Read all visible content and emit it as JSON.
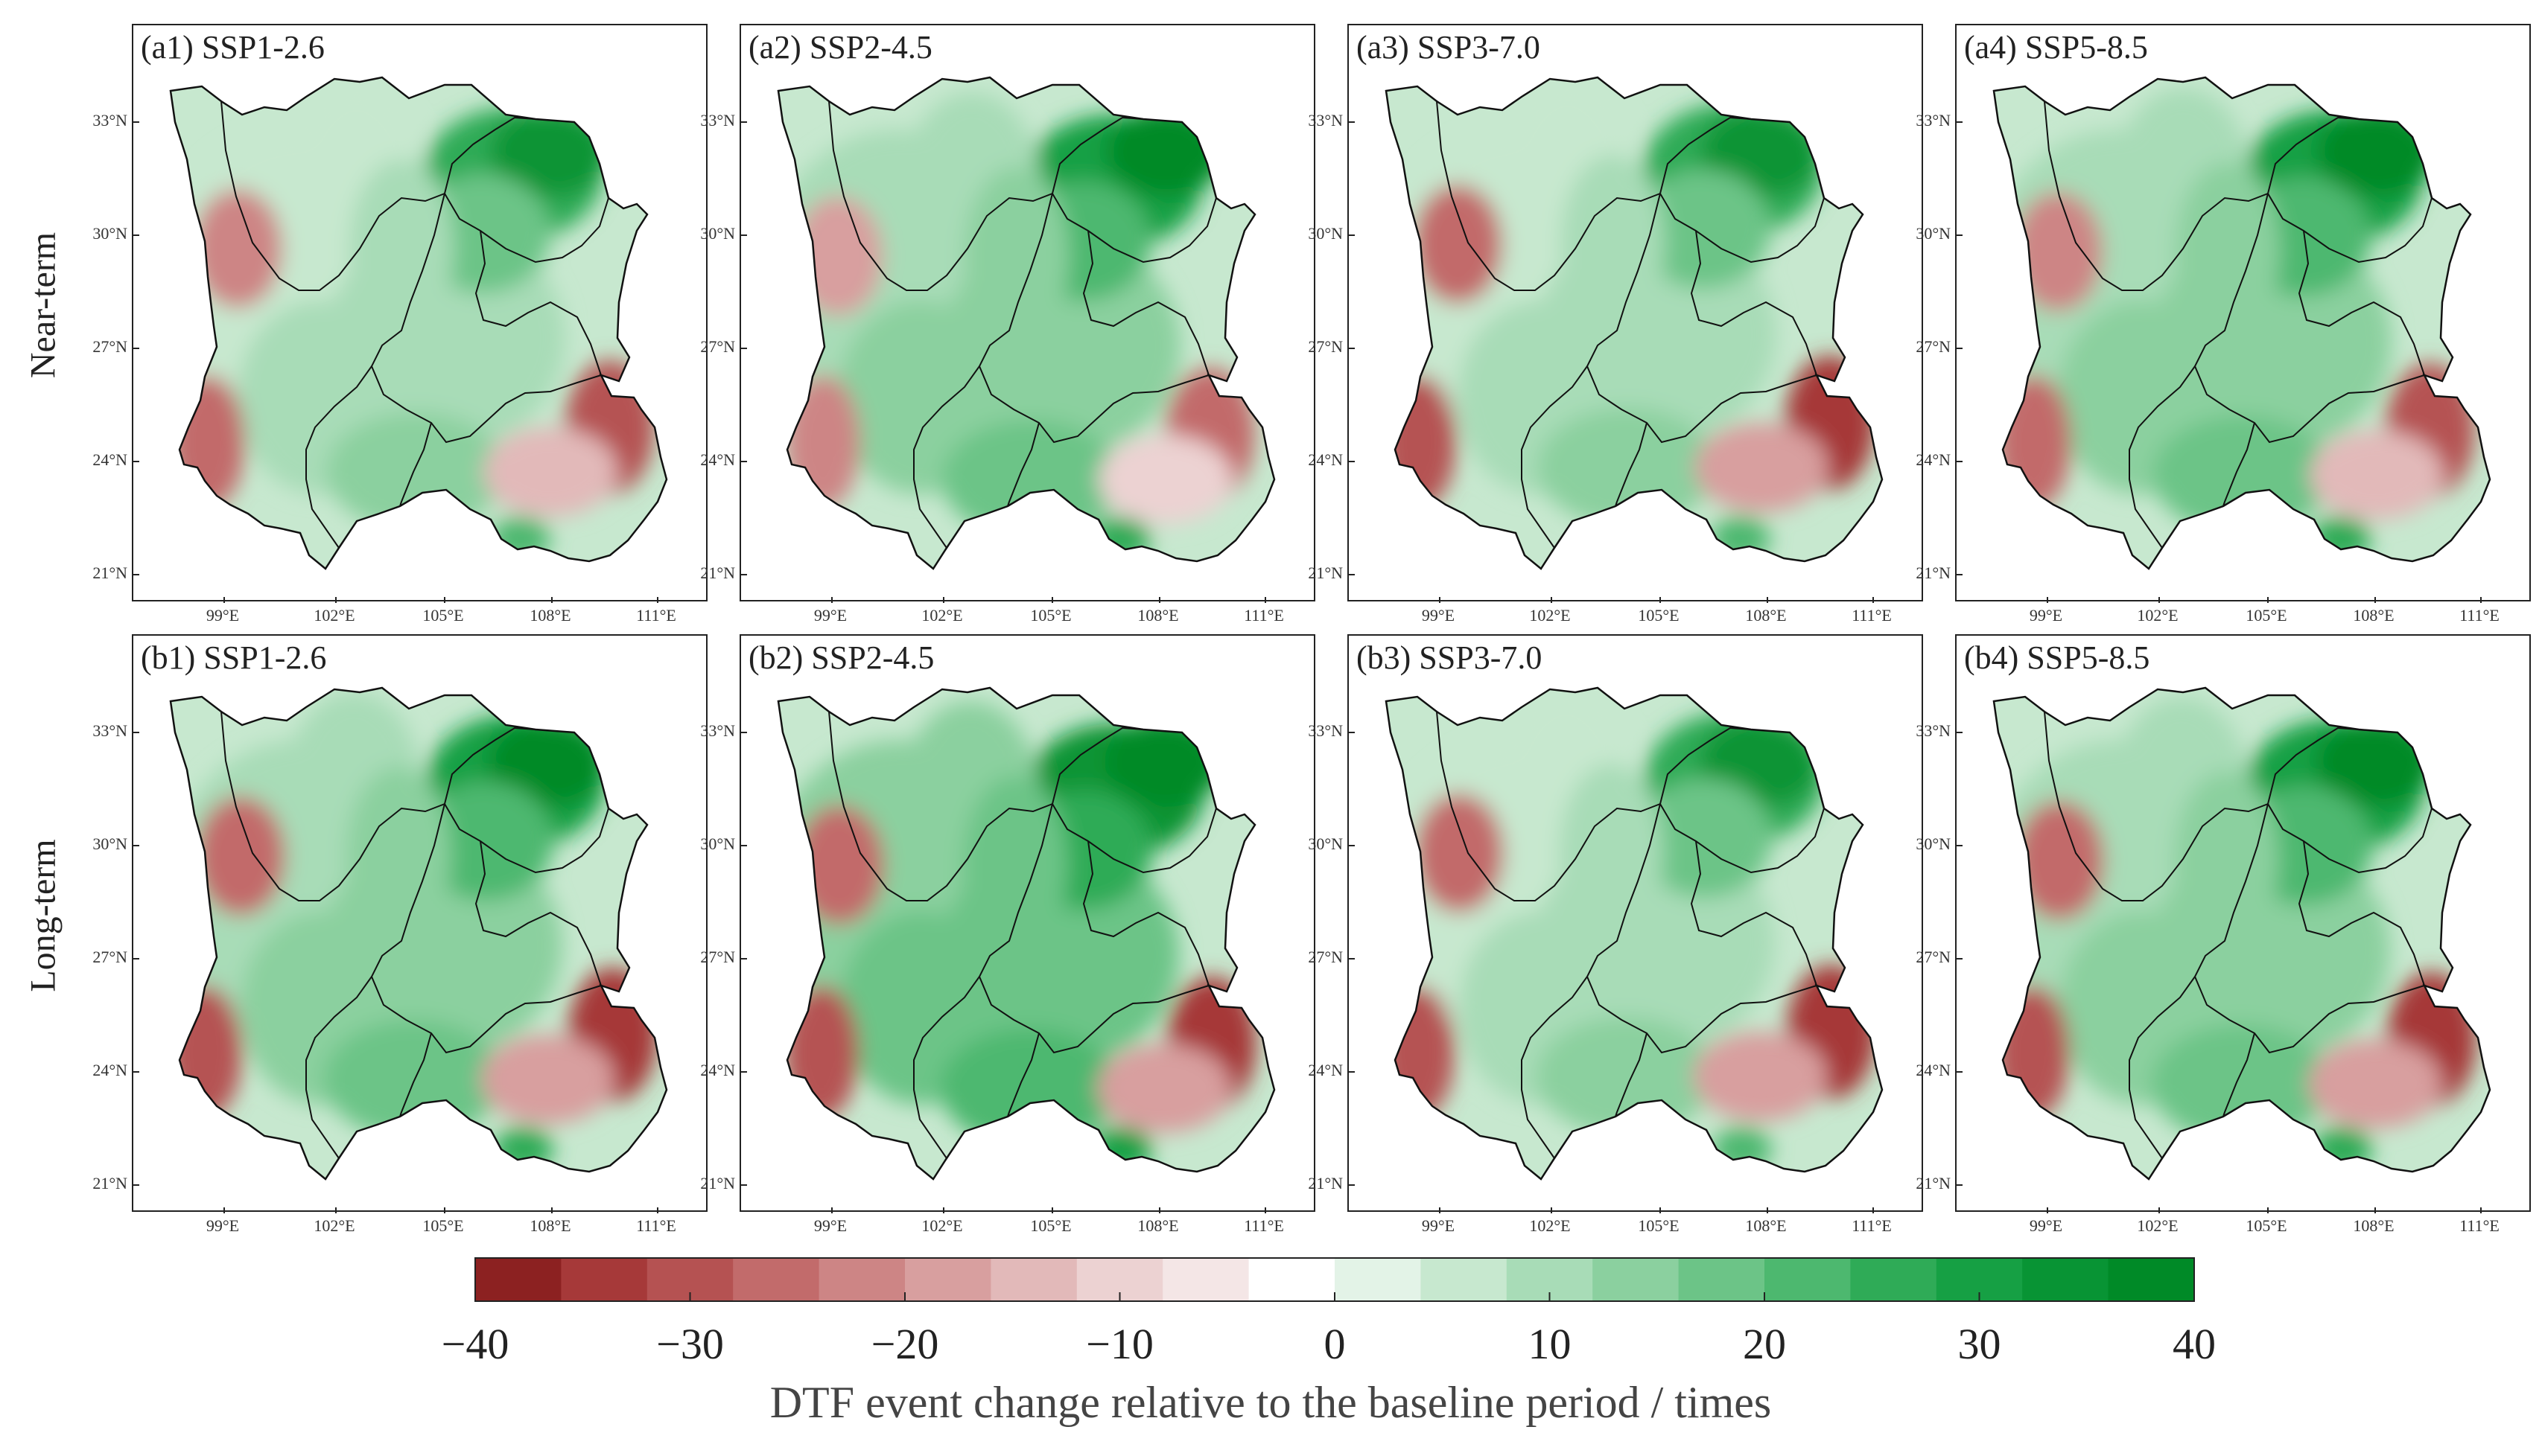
{
  "rows": [
    {
      "label": "Near-term"
    },
    {
      "label": "Long-term"
    }
  ],
  "panels": [
    {
      "title": "(a1) SSP1-2.6"
    },
    {
      "title": "(a2) SSP2-4.5"
    },
    {
      "title": "(a3) SSP3-7.0"
    },
    {
      "title": "(a4) SSP5-8.5"
    },
    {
      "title": "(b1) SSP1-2.6"
    },
    {
      "title": "(b2) SSP2-4.5"
    },
    {
      "title": "(b3) SSP3-7.0"
    },
    {
      "title": "(b4) SSP5-8.5"
    }
  ],
  "lat_ticks": [
    "33°N",
    "30°N",
    "27°N",
    "24°N",
    "21°N"
  ],
  "lon_ticks": [
    "99°E",
    "102°E",
    "105°E",
    "108°E",
    "111°E"
  ],
  "colorbar": {
    "title": "DTF event change relative to the baseline period / times",
    "labels": [
      "−40",
      "−30",
      "−20",
      "−10",
      "0",
      "10",
      "20",
      "30",
      "40"
    ],
    "colors": [
      "#8c2121",
      "#a63939",
      "#b55252",
      "#c26b6b",
      "#cd8585",
      "#d89f9f",
      "#e2b9b9",
      "#ecd2d2",
      "#f4e6e6",
      "#ffffff",
      "#e3f3e7",
      "#c7e8cf",
      "#a8dcb7",
      "#8bd09f",
      "#6cc487",
      "#4db86f",
      "#2fab57",
      "#16a044",
      "#089434",
      "#008a27"
    ],
    "vmin": -40,
    "vmax": 40
  }
}
